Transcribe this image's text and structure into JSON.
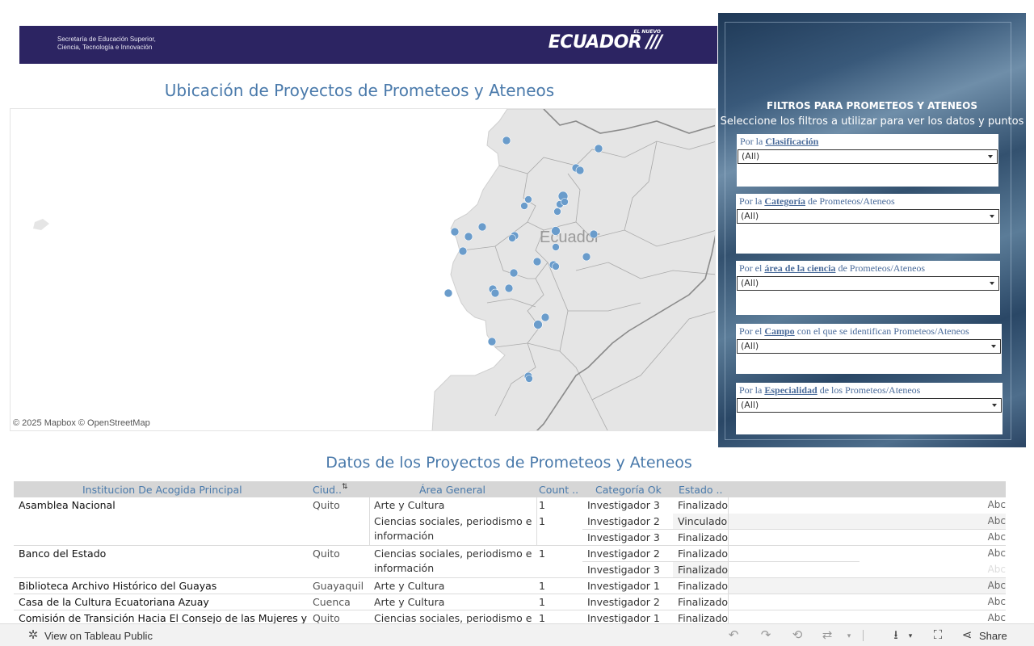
{
  "banner": {
    "secretaria_line1": "Secretaría de Educación Superior,",
    "secretaria_line2": "Ciencia, Tecnología e Innovación",
    "logo_small": "EL NUEVO",
    "logo_text": "ECUADOR"
  },
  "map": {
    "title": "Ubicación de Proyectos de Prometeos y Ateneos",
    "country_label": "Ecuador",
    "attribution": "© 2025 Mapbox  © OpenStreetMap",
    "point_color": "#6a9ccb"
  },
  "filters_panel": {
    "title": "FILTROS PARA PROMETEOS Y ATENEOS",
    "subtitle": "Seleccione los filtros a utilizar para ver los datos y puntos",
    "filters": [
      {
        "prefix": "Por la ",
        "key": "Clasificación",
        "suffix": "",
        "value": "(All)"
      },
      {
        "prefix": "Por la ",
        "key": "Categoría",
        "suffix": " de Prometeos/Ateneos",
        "value": "(All)"
      },
      {
        "prefix": "Por el ",
        "key": "área de la ciencia",
        "suffix": " de Prometeos/Ateneos",
        "value": "(All)"
      },
      {
        "prefix": "Por el ",
        "key": "Campo",
        "suffix": " con el que se identifican  Prometeos/Ateneos",
        "value": "(All)"
      },
      {
        "prefix": "Por la ",
        "key": "Especialidad",
        "suffix": " de los Prometeos/Ateneos",
        "value": "(All)"
      }
    ]
  },
  "table": {
    "title": "Datos de los Proyectos de Prometeos  y  Ateneos",
    "headers": [
      "Institucion De Acogida Principal",
      "Ciud..",
      "Área General",
      "Count ..",
      "Categoría Ok",
      "Estado .."
    ],
    "sort_icon": "sort-descending-icon",
    "rows": [
      {
        "inst": "Asamblea Nacional",
        "city": "Quito",
        "area": "Arte y Cultura",
        "count": "1",
        "cat": "Investigador 3",
        "estado": "Finalizado",
        "abc": "Abc"
      },
      {
        "inst": "",
        "city": "",
        "area": "Ciencias sociales, periodismo e",
        "count": "1",
        "cat": "Investigador 2",
        "estado": "Vinculado",
        "abc": "Abc"
      },
      {
        "inst": "",
        "city": "",
        "area": "información",
        "count": "",
        "cat": "Investigador 3",
        "estado": "Finalizado",
        "abc": "Abc"
      },
      {
        "inst": "Banco del Estado",
        "city": "Quito",
        "area": "Ciencias sociales, periodismo e",
        "count": "1",
        "cat": "Investigador 2",
        "estado": "Finalizado",
        "abc": "Abc"
      },
      {
        "inst": "",
        "city": "",
        "area": "información",
        "count": "",
        "cat": "Investigador 3",
        "estado": "Finalizado",
        "abc": "Abc"
      },
      {
        "inst": "Biblioteca Archivo Histórico del Guayas",
        "city": "Guayaquil",
        "area": "Arte y Cultura",
        "count": "1",
        "cat": "Investigador 1",
        "estado": "Finalizado",
        "abc": "Abc"
      },
      {
        "inst": "Casa de la Cultura Ecuatoriana Azuay",
        "city": "Cuenca",
        "area": "Arte y Cultura",
        "count": "1",
        "cat": "Investigador 2",
        "estado": "Finalizado",
        "abc": "Abc"
      },
      {
        "inst": "Comisión de Transición Hacia El Consejo de las Mujeres y la Igu..",
        "city": "Quito",
        "area": "Ciencias sociales, periodismo e inf..",
        "count": "1",
        "cat": "Investigador 1",
        "estado": "Finalizado",
        "abc": "Abc"
      }
    ]
  },
  "footer": {
    "view_label": "View on Tableau Public",
    "share_label": "Share",
    "icons": [
      "undo-icon",
      "redo-icon",
      "revert-icon",
      "refresh-icon",
      "download-icon",
      "fullscreen-icon",
      "share-icon"
    ]
  }
}
